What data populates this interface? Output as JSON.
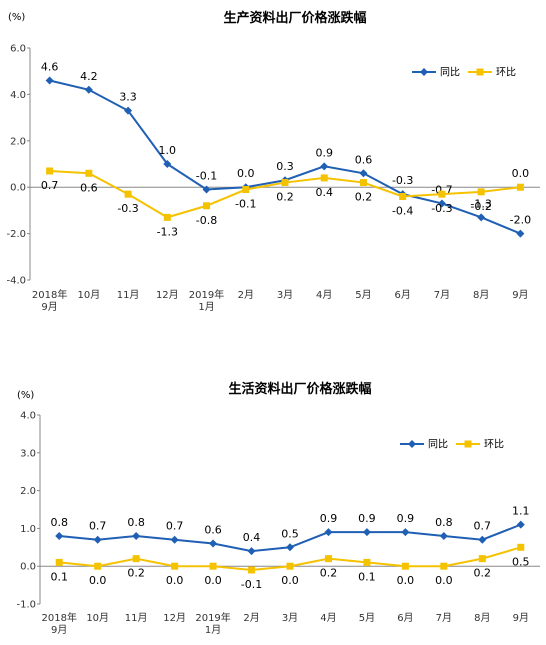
{
  "chart_data": [
    {
      "type": "line",
      "title": "生产资料出厂价格涨跌幅",
      "unit": "(%)",
      "categories": [
        "2018年\n9月",
        "10月",
        "11月",
        "12月",
        "2019年\n1月",
        "2月",
        "3月",
        "4月",
        "5月",
        "6月",
        "7月",
        "8月",
        "9月"
      ],
      "ylim": [
        -4.0,
        6.0
      ],
      "yticks": [
        "6.0",
        "4.0",
        "2.0",
        "0.0",
        "-2.0",
        "-4.0"
      ],
      "ytick_values": [
        6,
        4,
        2,
        0,
        -2,
        -4
      ],
      "legend_position": "top-right",
      "series": [
        {
          "name": "同比",
          "color": "#1f5fb4",
          "marker": "diamond",
          "values": [
            4.6,
            4.2,
            3.3,
            1.0,
            -0.1,
            0.0,
            0.3,
            0.9,
            0.6,
            -0.3,
            -0.7,
            -1.3,
            -2.0
          ],
          "labels": [
            "4.6",
            "4.2",
            "3.3",
            "1.0",
            "-0.1",
            "0.0",
            "0.3",
            "0.9",
            "0.6",
            "-0.3",
            "-0.7",
            "-1.3",
            "-2.0"
          ]
        },
        {
          "name": "环比",
          "color": "#f5c200",
          "marker": "square",
          "values": [
            0.7,
            0.6,
            -0.3,
            -1.3,
            -0.8,
            -0.1,
            0.2,
            0.4,
            0.2,
            -0.4,
            -0.3,
            -0.2,
            0.0
          ],
          "labels": [
            "0.7",
            "0.6",
            "-0.3",
            "-1.3",
            "-0.8",
            "-0.1",
            "0.2",
            "0.4",
            "0.2",
            "-0.4",
            "-0.3",
            "-0.2",
            "0.0"
          ]
        }
      ]
    },
    {
      "type": "line",
      "title": "生活资料出厂价格涨跌幅",
      "unit": "(%)",
      "categories": [
        "2018年\n9月",
        "10月",
        "11月",
        "12月",
        "2019年\n1月",
        "2月",
        "3月",
        "4月",
        "5月",
        "6月",
        "7月",
        "8月",
        "9月"
      ],
      "ylim": [
        -1.0,
        4.0
      ],
      "yticks": [
        "4.0",
        "3.0",
        "2.0",
        "1.0",
        "0.0",
        "-1.0"
      ],
      "ytick_values": [
        4,
        3,
        2,
        1,
        0,
        -1
      ],
      "legend_position": "top-right",
      "series": [
        {
          "name": "同比",
          "color": "#1f5fb4",
          "marker": "diamond",
          "values": [
            0.8,
            0.7,
            0.8,
            0.7,
            0.6,
            0.4,
            0.5,
            0.9,
            0.9,
            0.9,
            0.8,
            0.7,
            1.1
          ],
          "labels": [
            "0.8",
            "0.7",
            "0.8",
            "0.7",
            "0.6",
            "0.4",
            "0.5",
            "0.9",
            "0.9",
            "0.9",
            "0.8",
            "0.7",
            "1.1"
          ]
        },
        {
          "name": "环比",
          "color": "#f5c200",
          "marker": "square",
          "values": [
            0.1,
            0.0,
            0.2,
            0.0,
            0.0,
            -0.1,
            0.0,
            0.2,
            0.1,
            0.0,
            0.0,
            0.2,
            0.5
          ],
          "labels": [
            "0.1",
            "0.0",
            "0.2",
            "0.0",
            "0.0",
            "-0.1",
            "0.0",
            "0.2",
            "0.1",
            "0.0",
            "0.0",
            "0.2",
            "0.5"
          ]
        }
      ]
    }
  ]
}
